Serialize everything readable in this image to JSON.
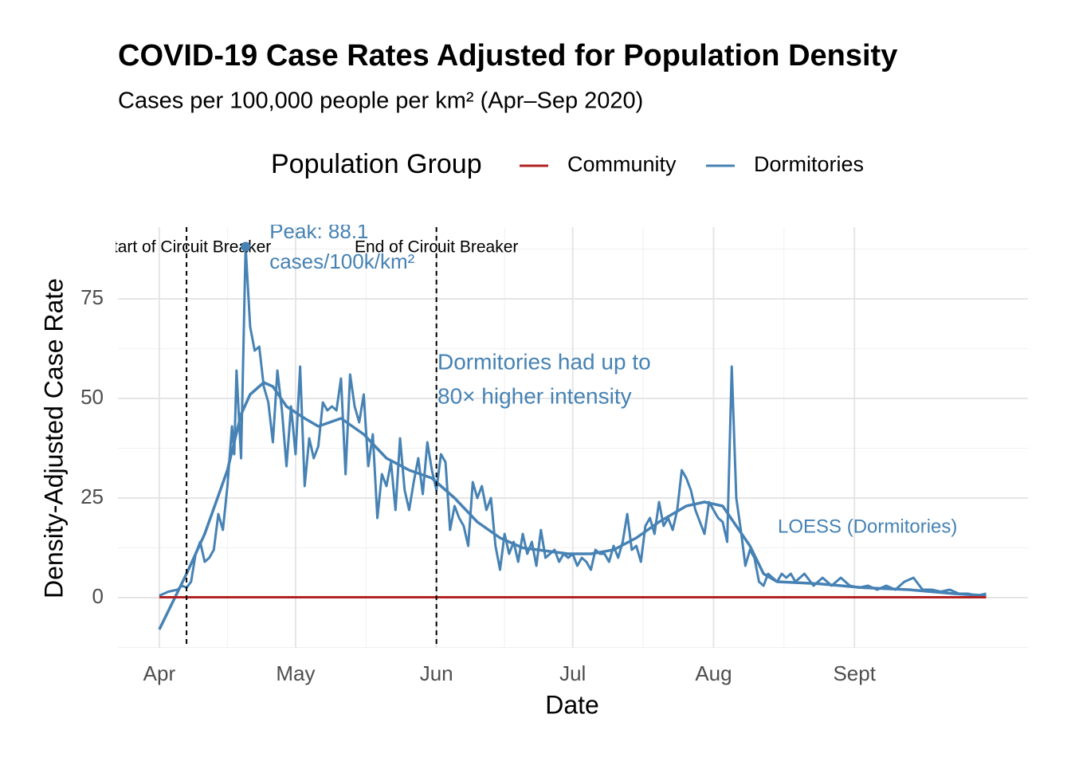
{
  "chart_data": {
    "type": "line",
    "title": "COVID-19 Case Rates Adjusted for Population Density",
    "subtitle": "Cases per 100,000 people per km² (Apr–Sep 2020)",
    "x_label": "Date",
    "y_label": "Density-Adjusted Case Rate",
    "legend_title": "Population Group",
    "legend_position": "top",
    "grid": true,
    "minor_grid": true,
    "xlim": [
      -9.1,
      191.2
    ],
    "ylim": [
      -12.6,
      93
    ],
    "xticks": [
      {
        "value": 0,
        "label": "Apr"
      },
      {
        "value": 30,
        "label": "May"
      },
      {
        "value": 61,
        "label": "Jun"
      },
      {
        "value": 91,
        "label": "Jul"
      },
      {
        "value": 122,
        "label": "Aug"
      },
      {
        "value": 153,
        "label": "Sept"
      }
    ],
    "yticks": [
      0,
      25,
      50,
      75
    ],
    "series": [
      {
        "name": "Community",
        "color": "#b22222",
        "x": [
          0,
          182
        ],
        "values": [
          0.1,
          0.1
        ]
      },
      {
        "name": "Dormitories",
        "color": "#4682b4",
        "x": [
          0,
          2,
          4,
          5,
          6,
          7,
          8,
          9,
          10,
          11,
          12,
          13,
          14,
          15,
          16,
          16.5,
          17,
          18,
          19,
          20,
          21,
          22,
          23,
          24,
          25,
          26,
          27,
          28,
          29,
          30,
          31,
          32,
          33,
          34,
          35,
          36,
          37,
          38,
          39,
          40,
          41,
          42,
          43,
          44,
          45,
          46,
          47,
          48,
          49,
          50,
          51,
          52,
          53,
          54,
          55,
          56,
          57,
          58,
          59,
          60,
          61,
          62,
          63,
          64,
          65,
          66,
          67,
          68,
          69,
          70,
          71,
          72,
          73,
          74,
          75,
          76,
          77,
          78,
          79,
          80,
          81,
          82,
          83,
          84,
          85,
          86,
          87,
          88,
          89,
          90,
          91,
          92,
          93,
          94,
          95,
          96,
          97,
          98,
          99,
          100,
          101,
          102,
          103,
          104,
          105,
          106,
          107,
          108,
          109,
          110,
          111,
          112,
          113,
          114,
          115,
          116,
          117,
          118,
          119,
          120,
          121,
          122,
          123,
          124,
          125,
          126,
          127,
          128,
          129,
          130,
          131,
          132,
          133,
          134,
          135,
          136,
          137,
          138,
          139,
          140,
          142,
          144,
          146,
          148,
          150,
          152,
          154,
          156,
          158,
          160,
          162,
          164,
          166,
          168,
          170,
          172,
          174,
          176,
          178,
          180,
          182
        ],
        "values": [
          0.5,
          1.5,
          2,
          3,
          2.5,
          4,
          11,
          14,
          9,
          10,
          12,
          21,
          17,
          28,
          43,
          36,
          57,
          35,
          88.1,
          68,
          62,
          63,
          53,
          49,
          39,
          57,
          47,
          33,
          48,
          36,
          58,
          28,
          40,
          35,
          38,
          49,
          47,
          48,
          47,
          55,
          31,
          56,
          48,
          44,
          51,
          33,
          41,
          20,
          31,
          28,
          34,
          22,
          40,
          27,
          22,
          29,
          35,
          26,
          39,
          32,
          27,
          36,
          34,
          17,
          23,
          20,
          18,
          13,
          29,
          25,
          28,
          22,
          25,
          13,
          7,
          16,
          11,
          14,
          9,
          16,
          11,
          14,
          8,
          17,
          10,
          11,
          12,
          9,
          11,
          10,
          11,
          8,
          10,
          9,
          7,
          12,
          11,
          11,
          9,
          13,
          10,
          14,
          21,
          12,
          13,
          9,
          18,
          20,
          16,
          24,
          18,
          20,
          17,
          22,
          32,
          30,
          27,
          22,
          19,
          16,
          24,
          22,
          20,
          19,
          14,
          58,
          25,
          17,
          8,
          12,
          10,
          4,
          3,
          6,
          5,
          4,
          6,
          5,
          6,
          4,
          6,
          3,
          5,
          3,
          5,
          3,
          2.5,
          3,
          2,
          3,
          2,
          4,
          5,
          2,
          2,
          1.5,
          2,
          1,
          1,
          0.5,
          1
        ]
      }
    ],
    "smooth": {
      "label": "LOESS (Dormitories)",
      "color": "#4682b4",
      "x": [
        0,
        6,
        10,
        15,
        18,
        20,
        23,
        25,
        28,
        32,
        35,
        40,
        45,
        50,
        55,
        60,
        65,
        70,
        75,
        80,
        90,
        95,
        100,
        105,
        110,
        116,
        120,
        124,
        127,
        130,
        133,
        136,
        145,
        155,
        165,
        175,
        182
      ],
      "values": [
        -8,
        6,
        16,
        32,
        46,
        51,
        54,
        53,
        48,
        45,
        43,
        45,
        41,
        35,
        32,
        30,
        25,
        19,
        15,
        12.5,
        11,
        11,
        12,
        15,
        19,
        23,
        24,
        23,
        18,
        13,
        6,
        4,
        3.5,
        2.5,
        2,
        1,
        0.5
      ]
    },
    "peak": {
      "x": 19,
      "value": 88.1,
      "color": "#4682b4",
      "label": [
        "Peak: 88.1",
        "cases/100k/km²"
      ]
    },
    "vlines": [
      {
        "x": 6,
        "label": "Start of Circuit Breaker"
      },
      {
        "x": 61,
        "label": "End of Circuit Breaker"
      }
    ],
    "note": {
      "color": "#4682b4",
      "lines": [
        "Dormitories had up to",
        "80× higher intensity"
      ]
    }
  }
}
